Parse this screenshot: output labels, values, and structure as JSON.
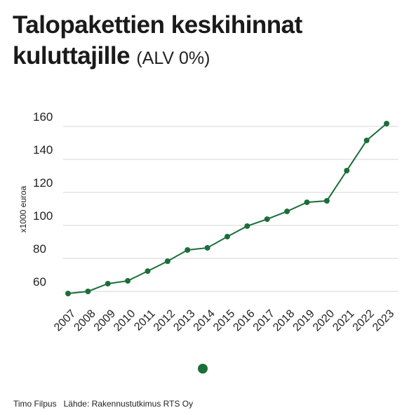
{
  "chart_data": {
    "type": "line",
    "title": "Talopakettien keskihinnat kuluttajille",
    "subtitle": "(ALV 0%)",
    "y_label": "x1000 euroa",
    "author": "Timo Filpus",
    "source": "Lähde: Rakennustutkimus RTS Oy",
    "categories": [
      "2007",
      "2008",
      "2009",
      "2010",
      "2011",
      "2012",
      "2013",
      "2014",
      "2015",
      "2016",
      "2017",
      "2018",
      "2019",
      "2020",
      "2021",
      "2022",
      "2023"
    ],
    "values": [
      58.7,
      60,
      64.7,
      66.4,
      72.3,
      78.3,
      85.1,
      86.4,
      93.2,
      99.6,
      103.8,
      108.5,
      114,
      114.9,
      133.2,
      151.5,
      161.7
    ],
    "color": "#1b6e3a",
    "ylim": [
      55,
      165
    ],
    "yticks": [
      60,
      80,
      100,
      120,
      140,
      160
    ],
    "grid": true
  }
}
